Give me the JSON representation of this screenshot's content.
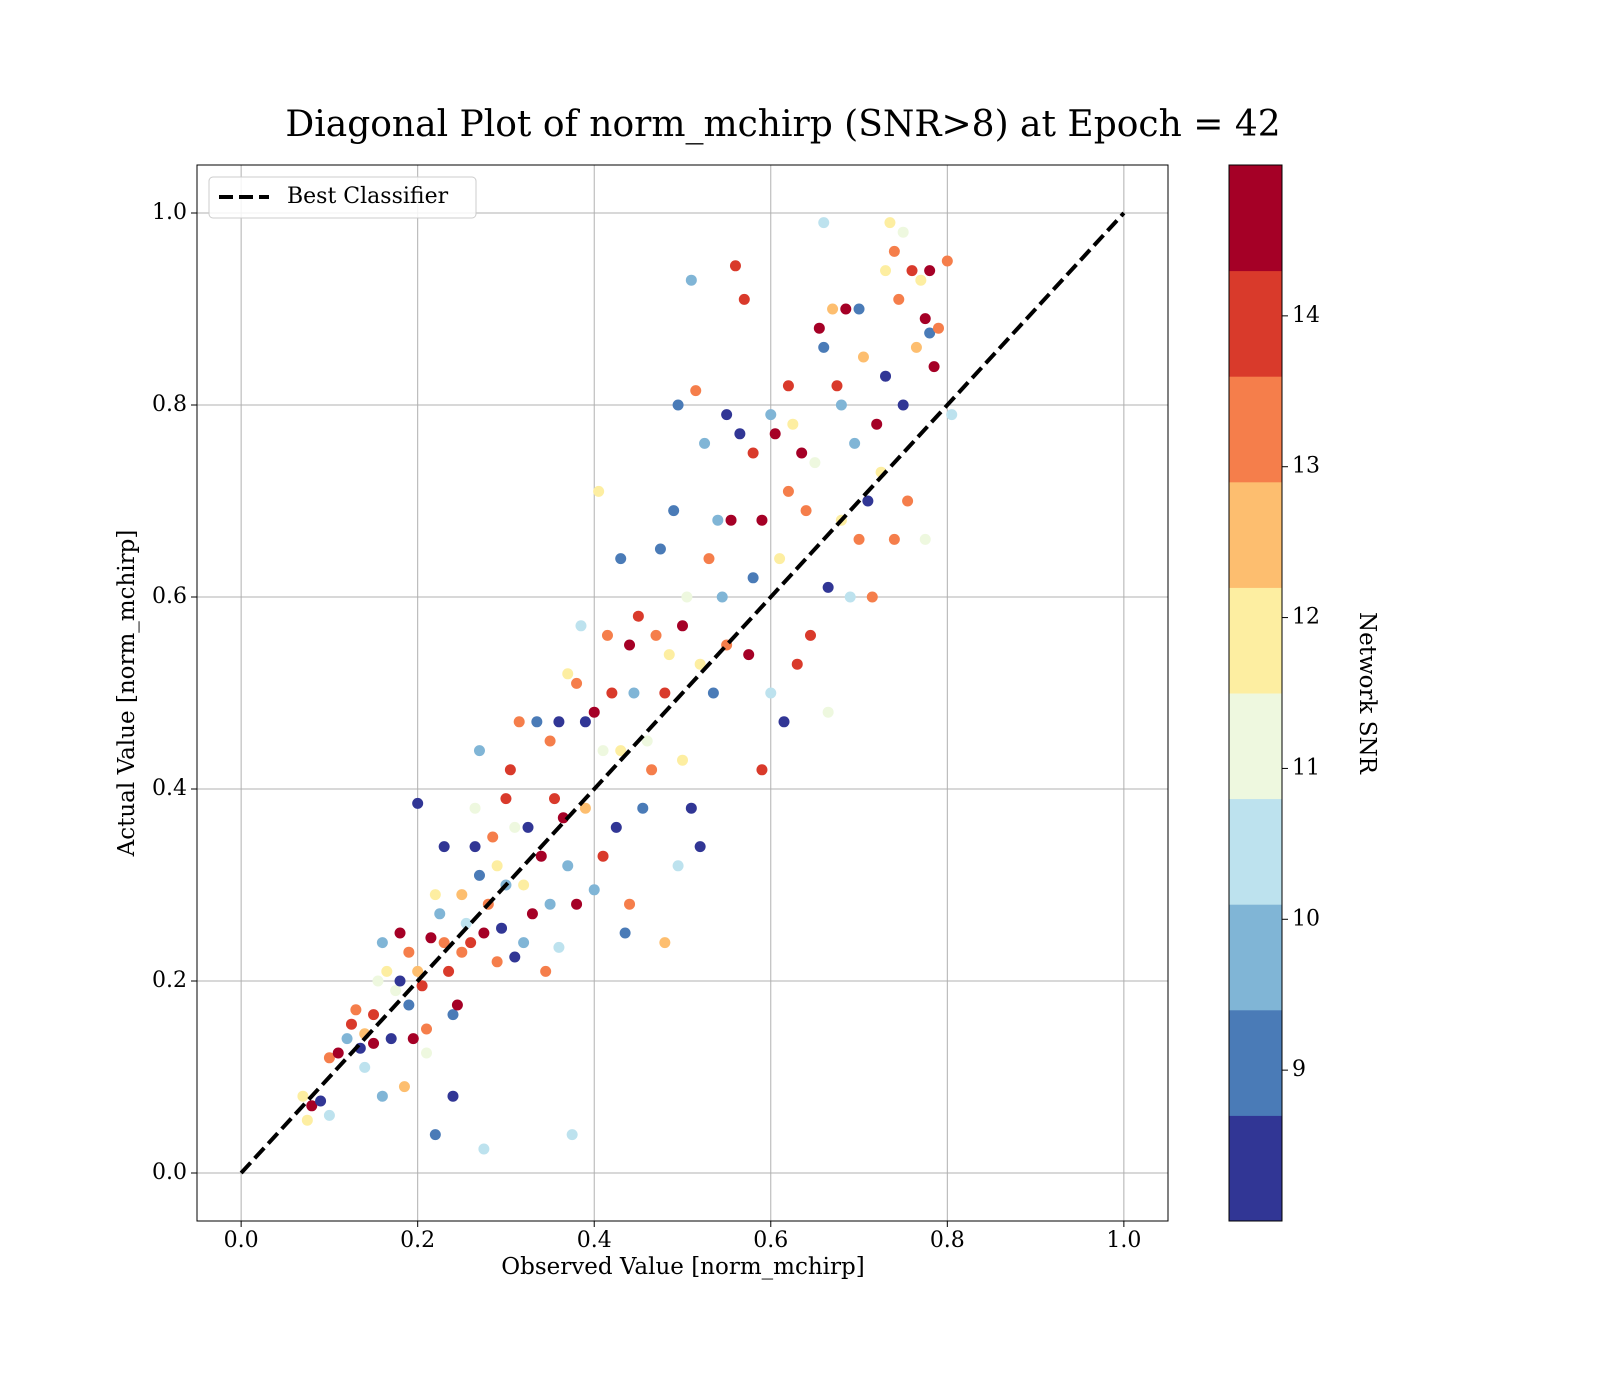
{
  "chart_data": {
    "type": "scatter",
    "title": "Diagonal Plot of norm_mchirp (SNR>8) at Epoch = 42",
    "x_label": "Observed Value [norm_mchirp]",
    "y_label": "Actual Value [norm_mchirp]",
    "xlim": [
      -0.05,
      1.05
    ],
    "ylim": [
      -0.05,
      1.05
    ],
    "xticks": [
      {
        "value": 0,
        "label": "0.0"
      },
      0.2,
      0.4,
      0.6,
      0.8,
      {
        "value": 1,
        "label": "1.0"
      }
    ],
    "yticks": [
      {
        "value": 0,
        "label": "0.0"
      },
      0.2,
      0.4,
      0.6,
      0.8,
      {
        "value": 1,
        "label": "1.0"
      }
    ],
    "grid": true,
    "legend_position": "upper left",
    "reference_line": {
      "name": "Best Classifier",
      "x": [
        0,
        1
      ],
      "y": [
        0,
        1
      ],
      "color": "#000000"
    },
    "colorbar": {
      "label": "Network SNR",
      "lim": [
        8,
        15
      ],
      "ticks": [
        9,
        10,
        11,
        12,
        13,
        14
      ],
      "colors": [
        "#313695",
        "#4a7bb7",
        "#80b5d6",
        "#bde2ee",
        "#eef8df",
        "#fdeea1",
        "#fdbe6f",
        "#f57e4b",
        "#d93a2b",
        "#a50026"
      ]
    },
    "x": [
      0.07,
      0.08,
      0.075,
      0.09,
      0.1,
      0.1,
      0.11,
      0.12,
      0.125,
      0.13,
      0.135,
      0.14,
      0.14,
      0.15,
      0.15,
      0.155,
      0.16,
      0.16,
      0.165,
      0.17,
      0.175,
      0.18,
      0.18,
      0.185,
      0.19,
      0.19,
      0.195,
      0.2,
      0.2,
      0.205,
      0.21,
      0.21,
      0.215,
      0.22,
      0.22,
      0.225,
      0.23,
      0.23,
      0.235,
      0.24,
      0.24,
      0.245,
      0.25,
      0.25,
      0.255,
      0.26,
      0.265,
      0.265,
      0.27,
      0.27,
      0.275,
      0.275,
      0.28,
      0.285,
      0.29,
      0.29,
      0.295,
      0.3,
      0.3,
      0.305,
      0.31,
      0.31,
      0.315,
      0.32,
      0.32,
      0.325,
      0.33,
      0.335,
      0.34,
      0.345,
      0.35,
      0.35,
      0.355,
      0.36,
      0.36,
      0.365,
      0.37,
      0.37,
      0.375,
      0.38,
      0.38,
      0.385,
      0.39,
      0.39,
      0.4,
      0.4,
      0.405,
      0.41,
      0.41,
      0.415,
      0.42,
      0.425,
      0.43,
      0.43,
      0.435,
      0.44,
      0.44,
      0.445,
      0.45,
      0.455,
      0.46,
      0.465,
      0.47,
      0.475,
      0.48,
      0.48,
      0.485,
      0.49,
      0.495,
      0.495,
      0.5,
      0.5,
      0.505,
      0.51,
      0.51,
      0.515,
      0.52,
      0.52,
      0.525,
      0.53,
      0.535,
      0.54,
      0.545,
      0.55,
      0.55,
      0.555,
      0.56,
      0.565,
      0.57,
      0.575,
      0.58,
      0.58,
      0.59,
      0.59,
      0.6,
      0.6,
      0.605,
      0.61,
      0.615,
      0.62,
      0.62,
      0.625,
      0.63,
      0.635,
      0.64,
      0.645,
      0.65,
      0.655,
      0.66,
      0.66,
      0.665,
      0.665,
      0.67,
      0.675,
      0.68,
      0.68,
      0.685,
      0.69,
      0.695,
      0.7,
      0.7,
      0.705,
      0.71,
      0.715,
      0.72,
      0.725,
      0.73,
      0.73,
      0.735,
      0.74,
      0.74,
      0.745,
      0.75,
      0.75,
      0.755,
      0.76,
      0.765,
      0.77,
      0.775,
      0.775,
      0.78,
      0.78,
      0.785,
      0.79,
      0.8,
      0.805
    ],
    "values": [
      0.08,
      0.07,
      0.055,
      0.075,
      0.06,
      0.12,
      0.125,
      0.14,
      0.155,
      0.17,
      0.13,
      0.11,
      0.145,
      0.165,
      0.135,
      0.2,
      0.08,
      0.24,
      0.21,
      0.14,
      0.19,
      0.25,
      0.2,
      0.09,
      0.23,
      0.175,
      0.14,
      0.385,
      0.21,
      0.195,
      0.15,
      0.125,
      0.245,
      0.04,
      0.29,
      0.27,
      0.34,
      0.24,
      0.21,
      0.08,
      0.165,
      0.175,
      0.29,
      0.23,
      0.26,
      0.24,
      0.34,
      0.38,
      0.44,
      0.31,
      0.025,
      0.25,
      0.28,
      0.35,
      0.22,
      0.32,
      0.255,
      0.39,
      0.3,
      0.42,
      0.225,
      0.36,
      0.47,
      0.24,
      0.3,
      0.36,
      0.27,
      0.47,
      0.33,
      0.21,
      0.45,
      0.28,
      0.39,
      0.47,
      0.235,
      0.37,
      0.52,
      0.32,
      0.04,
      0.51,
      0.28,
      0.57,
      0.47,
      0.38,
      0.48,
      0.295,
      0.71,
      0.44,
      0.33,
      0.56,
      0.5,
      0.36,
      0.64,
      0.44,
      0.25,
      0.55,
      0.28,
      0.5,
      0.58,
      0.38,
      0.45,
      0.42,
      0.56,
      0.65,
      0.24,
      0.5,
      0.54,
      0.69,
      0.8,
      0.32,
      0.57,
      0.43,
      0.6,
      0.93,
      0.38,
      0.815,
      0.53,
      0.34,
      0.76,
      0.64,
      0.5,
      0.68,
      0.6,
      0.79,
      0.55,
      0.68,
      0.945,
      0.77,
      0.91,
      0.54,
      0.75,
      0.62,
      0.42,
      0.68,
      0.79,
      0.5,
      0.77,
      0.64,
      0.47,
      0.82,
      0.71,
      0.78,
      0.53,
      0.75,
      0.69,
      0.56,
      0.74,
      0.88,
      0.86,
      0.99,
      0.48,
      0.61,
      0.9,
      0.82,
      0.8,
      0.68,
      0.9,
      0.6,
      0.76,
      0.9,
      0.66,
      0.85,
      0.7,
      0.6,
      0.78,
      0.73,
      0.94,
      0.83,
      0.99,
      0.96,
      0.66,
      0.91,
      0.8,
      0.98,
      0.7,
      0.94,
      0.86,
      0.93,
      0.89,
      0.66,
      0.94,
      0.875,
      0.84,
      0.88,
      0.95,
      0.79
    ],
    "color_values": [
      12,
      14.5,
      12,
      8.5,
      10.5,
      13.5,
      14.5,
      10,
      14,
      13,
      8.5,
      10.5,
      12.5,
      14,
      14.5,
      11,
      9.5,
      9.5,
      12,
      8.5,
      11,
      14.5,
      8.5,
      12.5,
      13.5,
      9,
      14.5,
      8.5,
      12.5,
      14,
      13.5,
      11,
      14.5,
      9,
      12,
      10,
      8.5,
      13,
      14,
      8.5,
      9,
      14.5,
      12.5,
      13.5,
      10.5,
      14,
      8.5,
      11,
      9.5,
      9,
      10.5,
      14.5,
      13.5,
      13,
      13,
      12,
      8.5,
      14,
      10,
      14,
      8.5,
      11,
      13,
      9.5,
      12,
      8.5,
      14.5,
      9,
      14.5,
      13,
      13,
      9.5,
      14,
      8.5,
      10.5,
      14.5,
      12,
      9.5,
      10.5,
      13,
      14.5,
      10.5,
      8.5,
      12.5,
      14.5,
      9.5,
      12,
      11,
      14,
      13.5,
      14,
      8.5,
      9,
      12,
      9,
      14.5,
      13,
      10,
      14,
      9,
      11,
      13.5,
      13.5,
      9,
      12.5,
      14,
      12,
      9,
      9,
      10.5,
      14.5,
      11.5,
      11,
      9.5,
      8.5,
      13.5,
      12,
      8.5,
      9.5,
      13,
      9,
      10,
      10,
      8.5,
      13.5,
      14.5,
      14,
      8.5,
      14,
      14.5,
      14,
      9,
      14,
      14.5,
      9.5,
      10.5,
      14.5,
      12,
      8.5,
      14,
      13.5,
      11.5,
      14,
      14.5,
      13,
      14,
      11,
      14.5,
      9,
      10.5,
      11,
      8.5,
      12.5,
      14,
      9.5,
      12,
      14.5,
      10.5,
      10,
      9,
      13.5,
      12.5,
      8.5,
      13.5,
      14.5,
      12,
      11.5,
      8.5,
      12,
      13,
      13,
      13,
      8.5,
      11,
      13,
      14,
      12.5,
      11.5,
      14.5,
      11,
      14.5,
      9,
      14.5,
      13,
      13.5,
      10.5
    ]
  }
}
